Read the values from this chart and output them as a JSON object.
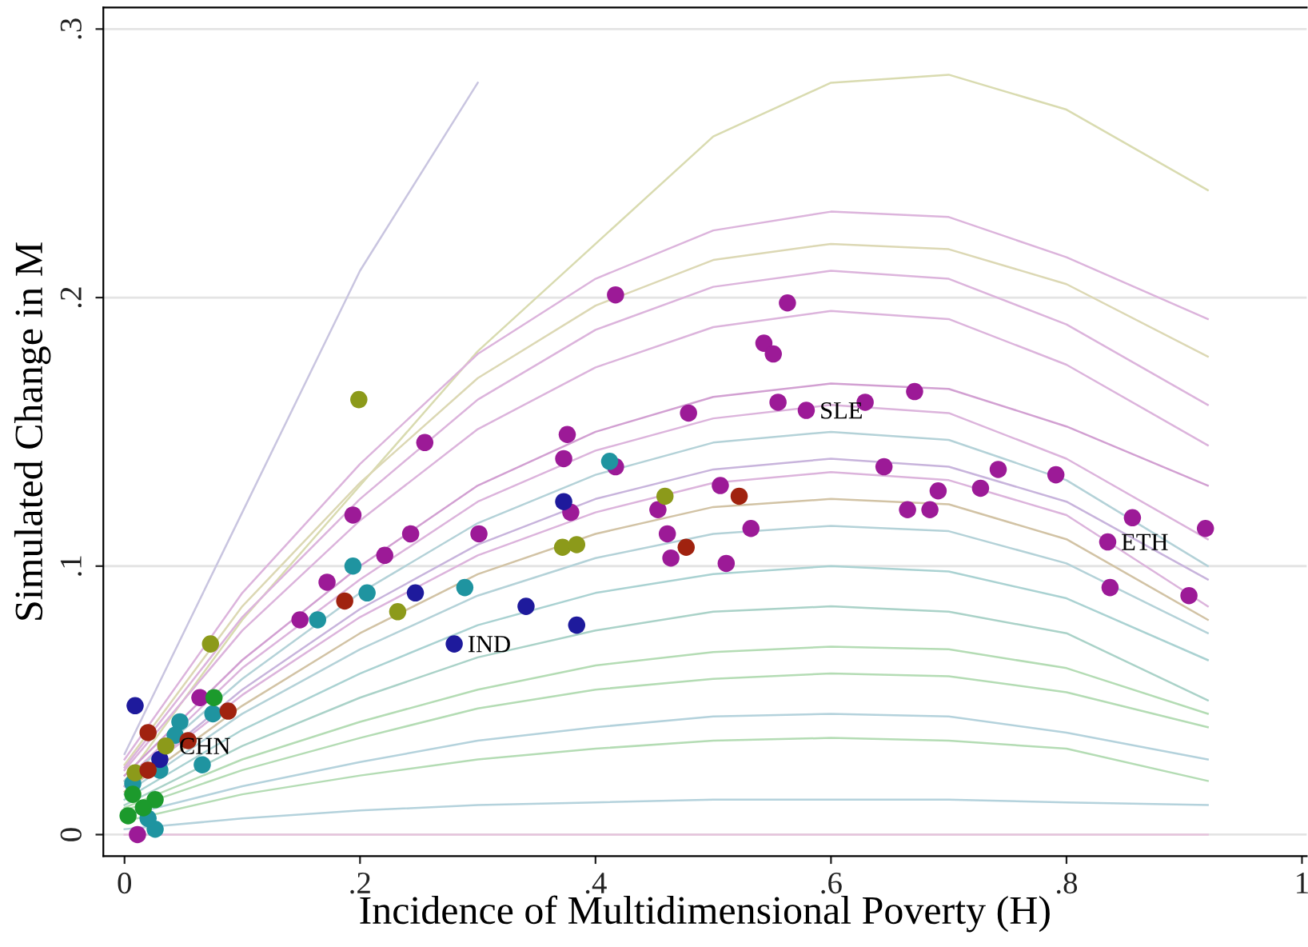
{
  "chart_data": {
    "type": "scatter",
    "xlabel": "Incidence of Multidimensional Poverty (H)",
    "ylabel": "Simulated Change in M",
    "xlim": [
      -0.018,
      1.004
    ],
    "ylim": [
      -0.008,
      0.308
    ],
    "xticks": [
      {
        "value": 0,
        "label": "0"
      },
      {
        "value": 0.2,
        "label": ".2"
      },
      {
        "value": 0.4,
        "label": ".4"
      },
      {
        "value": 0.6,
        "label": ".6"
      },
      {
        "value": 0.8,
        "label": ".8"
      },
      {
        "value": 1,
        "label": "1"
      }
    ],
    "yticks": [
      {
        "value": 0,
        "label": "0"
      },
      {
        "value": 0.1,
        "label": ".1"
      },
      {
        "value": 0.2,
        "label": ".2"
      },
      {
        "value": 0.3,
        "label": ".3"
      }
    ],
    "grid": "y",
    "annotations": [
      {
        "text": "CHN",
        "x": 0.035,
        "y": 0.033
      },
      {
        "text": "IND",
        "x": 0.28,
        "y": 0.071
      },
      {
        "text": "SLE",
        "x": 0.579,
        "y": 0.158
      },
      {
        "text": "ETH",
        "x": 0.835,
        "y": 0.109
      }
    ],
    "series": [
      {
        "type": "line",
        "marker": "none",
        "color": "#d9dbb0",
        "x": [
          0,
          0.1,
          0.2,
          0.3,
          0.4,
          0.5,
          0.6,
          0.7,
          0.8,
          0.92
        ],
        "values": [
          0.02,
          0.08,
          0.13,
          0.18,
          0.22,
          0.26,
          0.28,
          0.283,
          0.27,
          0.24
        ]
      },
      {
        "type": "line",
        "marker": "none",
        "color": "#c9c5e0",
        "x": [
          0,
          0.1,
          0.2,
          0.3
        ],
        "values": [
          0.03,
          0.12,
          0.21,
          0.28
        ]
      },
      {
        "type": "line",
        "marker": "none",
        "color": "#dcb4dc",
        "x": [
          0,
          0.1,
          0.2,
          0.3,
          0.4,
          0.5,
          0.6,
          0.7,
          0.8,
          0.92
        ],
        "values": [
          0.028,
          0.09,
          0.138,
          0.179,
          0.207,
          0.225,
          0.232,
          0.23,
          0.215,
          0.192
        ]
      },
      {
        "type": "line",
        "marker": "none",
        "color": "#dcd8b4",
        "x": [
          0,
          0.1,
          0.2,
          0.3,
          0.4,
          0.5,
          0.6,
          0.7,
          0.8,
          0.92
        ],
        "values": [
          0.026,
          0.085,
          0.131,
          0.17,
          0.197,
          0.214,
          0.22,
          0.218,
          0.205,
          0.178
        ]
      },
      {
        "type": "line",
        "marker": "none",
        "color": "#dcb4dc",
        "x": [
          0,
          0.1,
          0.2,
          0.3,
          0.4,
          0.5,
          0.6,
          0.7,
          0.8,
          0.92
        ],
        "values": [
          0.025,
          0.081,
          0.125,
          0.162,
          0.188,
          0.204,
          0.21,
          0.207,
          0.19,
          0.16
        ]
      },
      {
        "type": "line",
        "marker": "none",
        "color": "#dcb4dc",
        "x": [
          0,
          0.1,
          0.2,
          0.3,
          0.4,
          0.5,
          0.6,
          0.7,
          0.8,
          0.92
        ],
        "values": [
          0.024,
          0.076,
          0.117,
          0.151,
          0.174,
          0.189,
          0.195,
          0.192,
          0.175,
          0.145
        ]
      },
      {
        "type": "line",
        "marker": "none",
        "color": "#d2a0d2",
        "x": [
          0,
          0.1,
          0.2,
          0.3,
          0.4,
          0.5,
          0.6,
          0.7,
          0.8,
          0.92
        ],
        "values": [
          0.022,
          0.065,
          0.1,
          0.13,
          0.15,
          0.163,
          0.168,
          0.166,
          0.152,
          0.13
        ]
      },
      {
        "type": "line",
        "marker": "none",
        "color": "#dcb4dc",
        "x": [
          0,
          0.1,
          0.2,
          0.3,
          0.4,
          0.5,
          0.6,
          0.7,
          0.8,
          0.92
        ],
        "values": [
          0.02,
          0.062,
          0.095,
          0.124,
          0.143,
          0.155,
          0.16,
          0.157,
          0.14,
          0.11
        ]
      },
      {
        "type": "line",
        "marker": "none",
        "color": "#b4d2d8",
        "x": [
          0,
          0.1,
          0.2,
          0.3,
          0.4,
          0.5,
          0.6,
          0.7,
          0.8,
          0.92
        ],
        "values": [
          0.02,
          0.058,
          0.09,
          0.116,
          0.134,
          0.146,
          0.15,
          0.147,
          0.132,
          0.1
        ]
      },
      {
        "type": "line",
        "marker": "none",
        "color": "#c8b4dc",
        "x": [
          0,
          0.1,
          0.2,
          0.3,
          0.4,
          0.5,
          0.6,
          0.7,
          0.8,
          0.92
        ],
        "values": [
          0.018,
          0.054,
          0.084,
          0.108,
          0.125,
          0.136,
          0.14,
          0.137,
          0.124,
          0.095
        ]
      },
      {
        "type": "line",
        "marker": "none",
        "color": "#dcb4dc",
        "x": [
          0,
          0.1,
          0.2,
          0.3,
          0.4,
          0.5,
          0.6,
          0.7,
          0.8,
          0.92
        ],
        "values": [
          0.018,
          0.052,
          0.081,
          0.104,
          0.12,
          0.131,
          0.135,
          0.132,
          0.119,
          0.085
        ]
      },
      {
        "type": "line",
        "marker": "none",
        "color": "#d2c3a5",
        "x": [
          0,
          0.1,
          0.2,
          0.3,
          0.4,
          0.5,
          0.6,
          0.7,
          0.8,
          0.92
        ],
        "values": [
          0.016,
          0.048,
          0.075,
          0.097,
          0.112,
          0.122,
          0.125,
          0.123,
          0.11,
          0.08
        ]
      },
      {
        "type": "line",
        "marker": "none",
        "color": "#b4d2d8",
        "x": [
          0,
          0.1,
          0.2,
          0.3,
          0.4,
          0.5,
          0.6,
          0.7,
          0.8,
          0.92
        ],
        "values": [
          0.015,
          0.045,
          0.069,
          0.089,
          0.103,
          0.112,
          0.115,
          0.113,
          0.101,
          0.075
        ]
      },
      {
        "type": "line",
        "marker": "none",
        "color": "#aad2d2",
        "x": [
          0,
          0.1,
          0.2,
          0.3,
          0.4,
          0.5,
          0.6,
          0.7,
          0.8,
          0.92
        ],
        "values": [
          0.013,
          0.039,
          0.06,
          0.078,
          0.09,
          0.097,
          0.1,
          0.098,
          0.088,
          0.065
        ]
      },
      {
        "type": "line",
        "marker": "none",
        "color": "#aad2c8",
        "x": [
          0,
          0.1,
          0.2,
          0.3,
          0.4,
          0.5,
          0.6,
          0.7,
          0.8,
          0.92
        ],
        "values": [
          0.011,
          0.033,
          0.051,
          0.066,
          0.076,
          0.083,
          0.085,
          0.083,
          0.075,
          0.05
        ]
      },
      {
        "type": "line",
        "marker": "none",
        "color": "#b4dcb4",
        "x": [
          0,
          0.1,
          0.2,
          0.3,
          0.4,
          0.5,
          0.6,
          0.7,
          0.8,
          0.92
        ],
        "values": [
          0.01,
          0.028,
          0.042,
          0.054,
          0.063,
          0.068,
          0.07,
          0.069,
          0.062,
          0.045
        ]
      },
      {
        "type": "line",
        "marker": "none",
        "color": "#b4dcb4",
        "x": [
          0,
          0.1,
          0.2,
          0.3,
          0.4,
          0.5,
          0.6,
          0.7,
          0.8,
          0.92
        ],
        "values": [
          0.009,
          0.024,
          0.036,
          0.047,
          0.054,
          0.058,
          0.06,
          0.059,
          0.053,
          0.04
        ]
      },
      {
        "type": "line",
        "marker": "none",
        "color": "#b4d2dc",
        "x": [
          0,
          0.1,
          0.2,
          0.3,
          0.4,
          0.5,
          0.6,
          0.7,
          0.8,
          0.92
        ],
        "values": [
          0.007,
          0.018,
          0.027,
          0.035,
          0.04,
          0.044,
          0.045,
          0.044,
          0.038,
          0.028
        ]
      },
      {
        "type": "line",
        "marker": "none",
        "color": "#b4dcb4",
        "x": [
          0,
          0.1,
          0.2,
          0.3,
          0.4,
          0.5,
          0.6,
          0.7,
          0.8,
          0.92
        ],
        "values": [
          0.005,
          0.015,
          0.022,
          0.028,
          0.032,
          0.035,
          0.036,
          0.035,
          0.032,
          0.02
        ]
      },
      {
        "type": "line",
        "marker": "none",
        "color": "#b4d2dc",
        "x": [
          0,
          0.1,
          0.2,
          0.3,
          0.4,
          0.5,
          0.6,
          0.7,
          0.8,
          0.92
        ],
        "values": [
          0.002,
          0.006,
          0.009,
          0.011,
          0.012,
          0.013,
          0.013,
          0.013,
          0.012,
          0.011
        ]
      },
      {
        "type": "line",
        "marker": "none",
        "color": "#e6c3dc",
        "x": [
          0,
          0.1,
          0.2,
          0.3,
          0.4,
          0.5,
          0.6,
          0.7,
          0.8,
          0.92
        ],
        "values": [
          0,
          0,
          0,
          0,
          0,
          0,
          0,
          0,
          0,
          0
        ]
      },
      {
        "marker": "circle",
        "color": "#9c1a97",
        "x": [
          0.417,
          0.563,
          0.543,
          0.551,
          0.555,
          0.579,
          0.629,
          0.671,
          0.255,
          0.376,
          0.373,
          0.417,
          0.479,
          0.645,
          0.742,
          0.791,
          0.727,
          0.691,
          0.665,
          0.684,
          0.856,
          0.918,
          0.835,
          0.837,
          0.904,
          0.506,
          0.453,
          0.461,
          0.464,
          0.532,
          0.511,
          0.379,
          0.194,
          0.243,
          0.301,
          0.221,
          0.172,
          0.149,
          0.064,
          0.011
        ],
        "values": [
          0.201,
          0.198,
          0.183,
          0.179,
          0.161,
          0.158,
          0.161,
          0.165,
          0.146,
          0.149,
          0.14,
          0.137,
          0.157,
          0.137,
          0.136,
          0.134,
          0.129,
          0.128,
          0.121,
          0.121,
          0.118,
          0.114,
          0.109,
          0.092,
          0.089,
          0.13,
          0.121,
          0.112,
          0.103,
          0.114,
          0.101,
          0.12,
          0.119,
          0.112,
          0.112,
          0.104,
          0.094,
          0.08,
          0.051,
          0.0
        ]
      },
      {
        "marker": "circle",
        "color": "#1f94a0",
        "x": [
          0.412,
          0.194,
          0.206,
          0.289,
          0.164,
          0.066,
          0.047,
          0.043,
          0.075,
          0.03,
          0.026,
          0.02,
          0.007
        ],
        "values": [
          0.139,
          0.1,
          0.09,
          0.092,
          0.08,
          0.026,
          0.042,
          0.037,
          0.045,
          0.024,
          0.002,
          0.006,
          0.019
        ]
      },
      {
        "marker": "circle",
        "color": "#1e1a9c",
        "x": [
          0.373,
          0.247,
          0.28,
          0.341,
          0.384,
          0.009,
          0.03
        ],
        "values": [
          0.124,
          0.09,
          0.071,
          0.085,
          0.078,
          0.048,
          0.028
        ]
      },
      {
        "marker": "circle",
        "color": "#8c9a1a",
        "x": [
          0.199,
          0.073,
          0.232,
          0.372,
          0.384,
          0.459,
          0.035,
          0.009
        ],
        "values": [
          0.162,
          0.071,
          0.083,
          0.107,
          0.108,
          0.126,
          0.033,
          0.023
        ]
      },
      {
        "marker": "circle",
        "color": "#a0220f",
        "x": [
          0.522,
          0.477,
          0.187,
          0.02,
          0.088,
          0.02,
          0.054
        ],
        "values": [
          0.126,
          0.107,
          0.087,
          0.038,
          0.046,
          0.024,
          0.035
        ]
      },
      {
        "marker": "circle",
        "color": "#1c9a2c",
        "x": [
          0.076,
          0.007,
          0.003,
          0.026,
          0.016
        ],
        "values": [
          0.051,
          0.015,
          0.007,
          0.013,
          0.01
        ]
      }
    ]
  }
}
